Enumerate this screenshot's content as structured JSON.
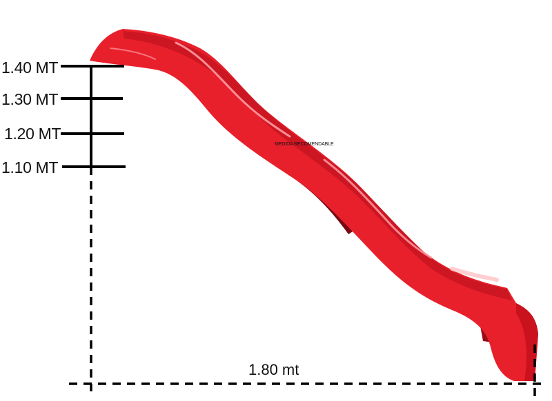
{
  "slide": {
    "color": "#e8202c",
    "shade_color": "#b50f1a",
    "highlight_color": "#ff8a93"
  },
  "measurements": {
    "heights": [
      {
        "label": "1.40 MT",
        "value_m": 1.4
      },
      {
        "label": "1.30 MT",
        "value_m": 1.3
      },
      {
        "label": "1.20 MT",
        "value_m": 1.2
      },
      {
        "label": "1.10 MT",
        "value_m": 1.1
      }
    ],
    "note": "MEDIDA RECOMENDABLE",
    "width": {
      "label": "1.80 mt",
      "value_m": 1.8
    }
  }
}
